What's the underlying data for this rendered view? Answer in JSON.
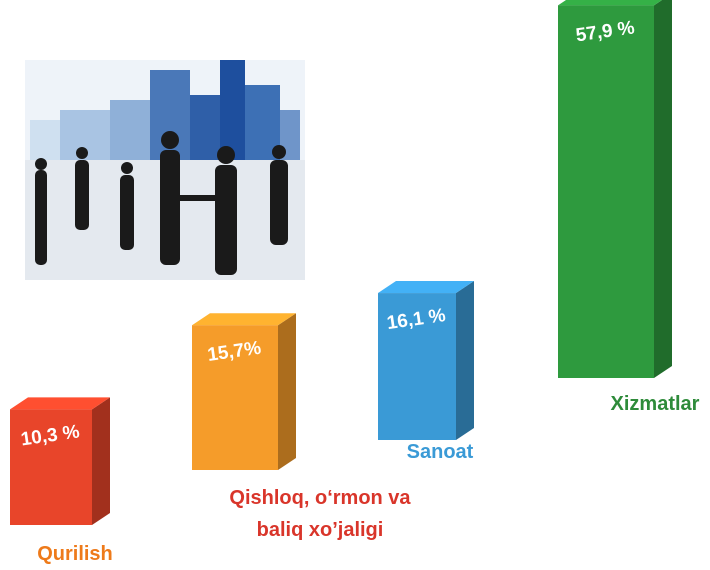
{
  "chart_data": {
    "type": "bar3d",
    "categories": [
      "Qurilish",
      "Qishloq, o‘rmon va baliq xo’jaligi",
      "Sanoat",
      "Xizmatlar"
    ],
    "values": [
      10.3,
      15.7,
      16.1,
      57.9
    ],
    "value_labels": [
      "10,3 %",
      "15,7%",
      "16,1 %",
      "57,9 %"
    ],
    "colors": [
      "#e8452a",
      "#f59c2a",
      "#3a9ad6",
      "#2e9a3e"
    ],
    "label_colors": [
      "#ee7a1a",
      "#d9352a",
      "#3a9ad6",
      "#2e8b3a"
    ]
  }
}
